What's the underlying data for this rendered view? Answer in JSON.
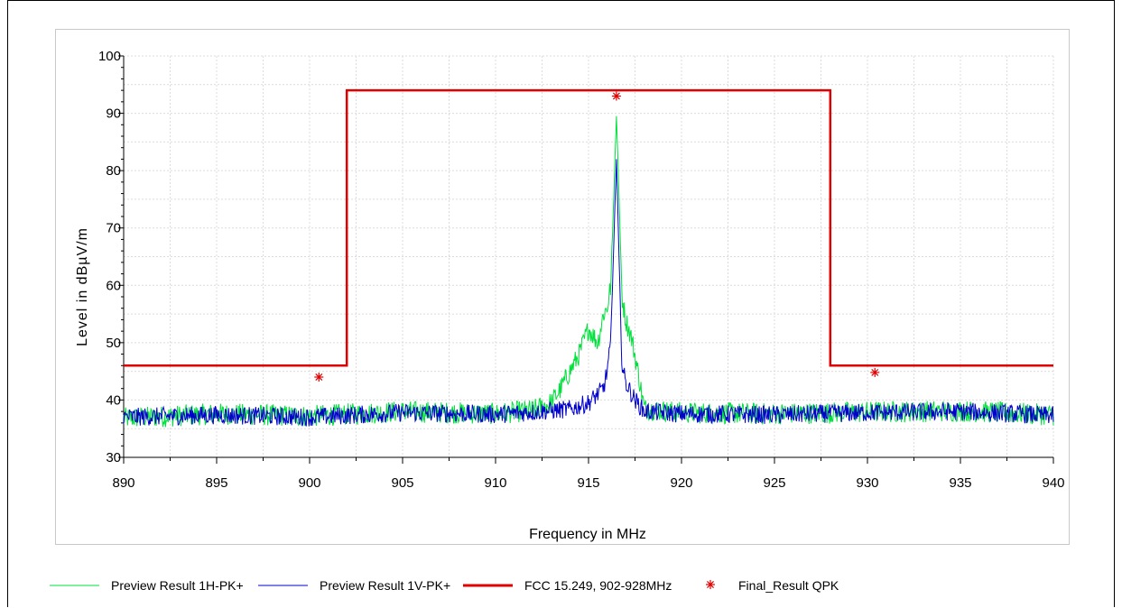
{
  "chart_data": {
    "type": "line",
    "xlabel": "Frequency in MHz",
    "ylabel": "Level in dBµV/m",
    "xlim": [
      890,
      940
    ],
    "ylim": [
      30,
      100
    ],
    "x_ticks": [
      890,
      895,
      900,
      905,
      910,
      915,
      920,
      925,
      930,
      935,
      940
    ],
    "y_ticks": [
      30,
      40,
      50,
      60,
      70,
      80,
      90,
      100
    ],
    "grid": true,
    "legend_position": "bottom",
    "series": [
      {
        "name": "Preview Result 1H-PK+",
        "color": "#00e03c",
        "style": "noise-trace",
        "baseline_level": 37.5,
        "peak": {
          "x": 916.5,
          "y": 89.5
        },
        "points": [
          [
            890,
            36.8
          ],
          [
            895,
            37.6
          ],
          [
            900,
            37.2
          ],
          [
            905,
            38.0
          ],
          [
            910,
            37.6
          ],
          [
            912,
            38.2
          ],
          [
            913,
            39.5
          ],
          [
            913.5,
            42.0
          ],
          [
            914,
            45.0
          ],
          [
            914.5,
            48.0
          ],
          [
            915,
            52.5
          ],
          [
            915.5,
            50.0
          ],
          [
            915.8,
            55.0
          ],
          [
            916,
            56.0
          ],
          [
            916.2,
            60.0
          ],
          [
            916.4,
            80.0
          ],
          [
            916.5,
            89.5
          ],
          [
            916.6,
            80.0
          ],
          [
            916.8,
            58.0
          ],
          [
            917,
            54.0
          ],
          [
            917.3,
            51.0
          ],
          [
            917.6,
            46.0
          ],
          [
            918,
            38.5
          ],
          [
            920,
            37.8
          ],
          [
            925,
            37.6
          ],
          [
            930,
            37.9
          ],
          [
            935,
            38.1
          ],
          [
            940,
            37.4
          ]
        ]
      },
      {
        "name": "Preview Result 1V-PK+",
        "color": "#0000cc",
        "style": "noise-trace",
        "baseline_level": 37.3,
        "peak": {
          "x": 916.5,
          "y": 82.0
        },
        "points": [
          [
            890,
            37.0
          ],
          [
            895,
            37.4
          ],
          [
            900,
            37.0
          ],
          [
            905,
            37.8
          ],
          [
            910,
            37.5
          ],
          [
            912,
            37.9
          ],
          [
            914,
            38.4
          ],
          [
            915,
            39.5
          ],
          [
            915.8,
            42.0
          ],
          [
            916,
            45.0
          ],
          [
            916.2,
            50.0
          ],
          [
            916.4,
            72.0
          ],
          [
            916.5,
            82.0
          ],
          [
            916.6,
            70.0
          ],
          [
            916.8,
            46.0
          ],
          [
            917,
            43.0
          ],
          [
            917.5,
            40.0
          ],
          [
            918,
            38.0
          ],
          [
            920,
            37.6
          ],
          [
            925,
            37.4
          ],
          [
            930,
            37.8
          ],
          [
            935,
            38.0
          ],
          [
            940,
            37.3
          ]
        ]
      },
      {
        "name": "FCC 15.249, 902-928MHz",
        "color": "#e00000",
        "style": "limit-line",
        "points": [
          [
            890,
            46.0
          ],
          [
            902,
            46.0
          ],
          [
            902,
            94.0
          ],
          [
            928,
            94.0
          ],
          [
            928,
            46.0
          ],
          [
            940,
            46.0
          ]
        ]
      },
      {
        "name": "Final_Result QPK",
        "color": "#e00000",
        "style": "marker",
        "points": [
          [
            900.5,
            44.0
          ],
          [
            916.5,
            93.0
          ],
          [
            930.4,
            44.8
          ]
        ]
      }
    ]
  }
}
